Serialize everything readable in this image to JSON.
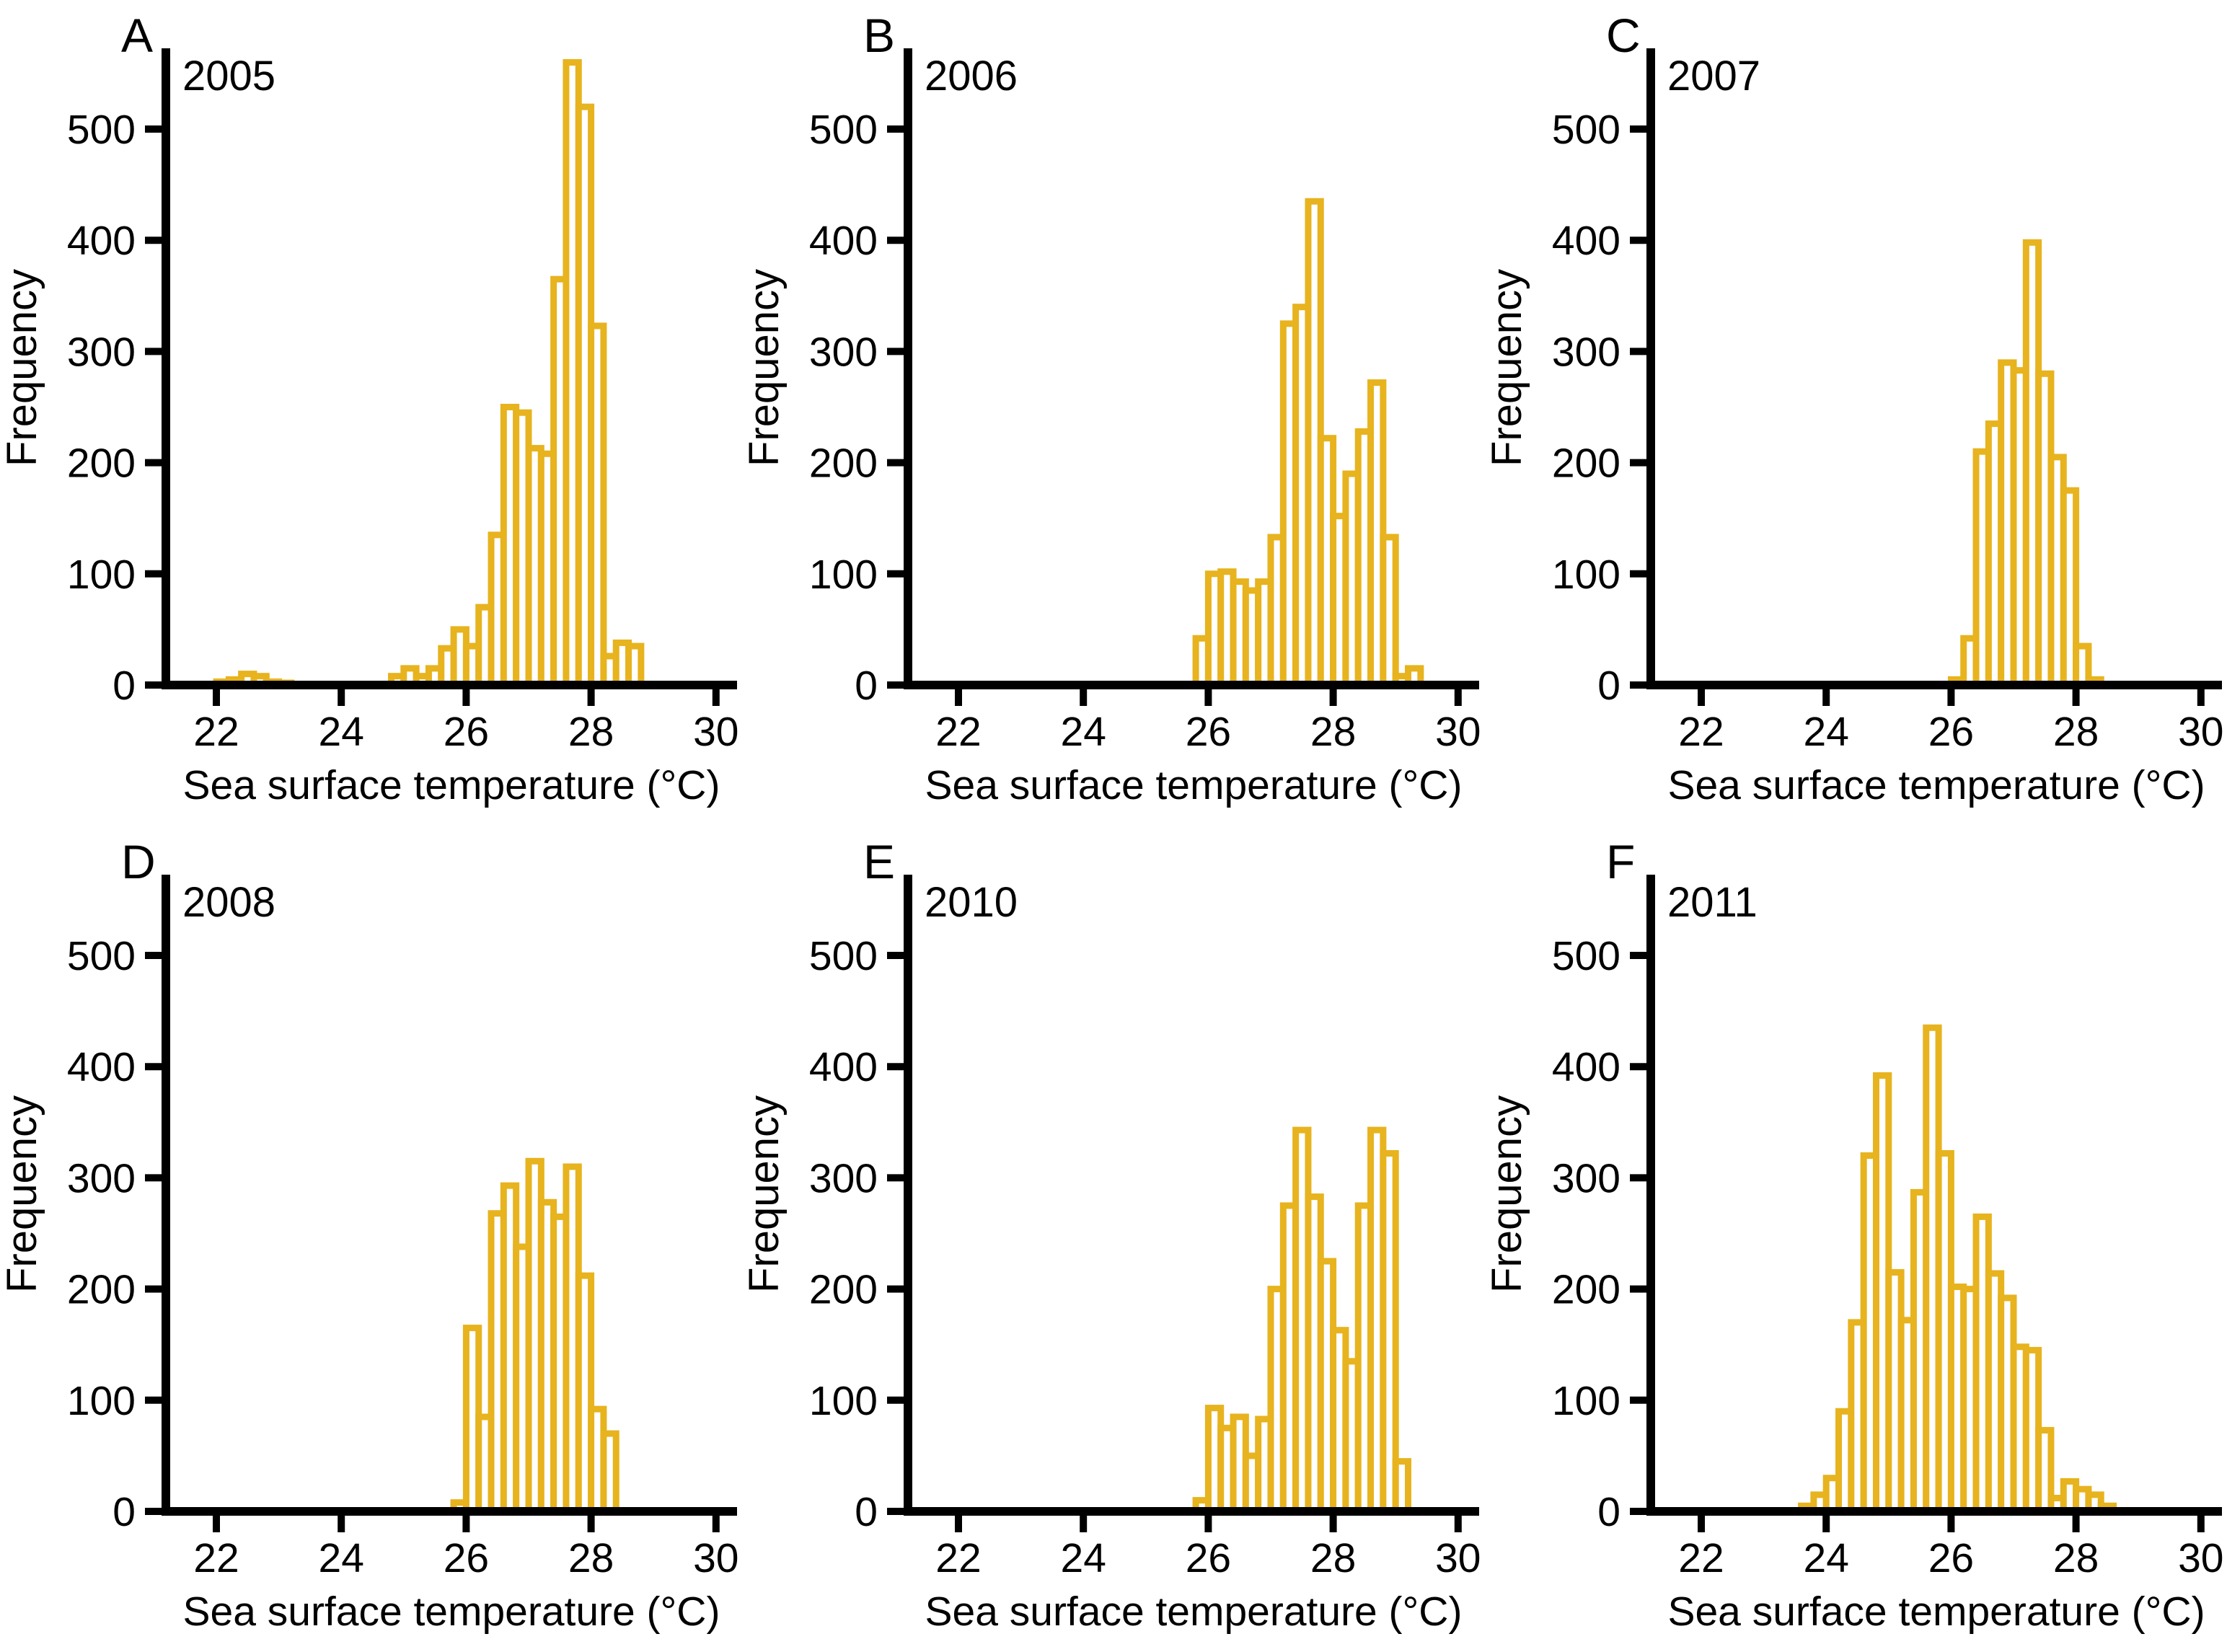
{
  "figure": {
    "background": "#ffffff",
    "bar_stroke_color": "#E7B31E",
    "bar_fill_color": "#ffffff",
    "axis_color": "#000000",
    "text_color": "#000000"
  },
  "chart_data": [
    {
      "type": "bar",
      "panel_label": "A",
      "title": "2005",
      "xlabel": "Sea surface temperature (°C)",
      "ylabel": "Frequency",
      "xlim": [
        21.2,
        30.3
      ],
      "ylim": [
        0,
        565
      ],
      "xticks": [
        22,
        24,
        26,
        28,
        30
      ],
      "yticks": [
        0,
        100,
        200,
        300,
        400,
        500
      ],
      "grid": false,
      "legend": "none",
      "bin_width": 0.2,
      "bin_start": 22.0,
      "values": [
        3,
        5,
        10,
        8,
        3,
        2,
        0,
        0,
        0,
        0,
        0,
        0,
        0,
        0,
        8,
        15,
        8,
        15,
        33,
        50,
        35,
        70,
        135,
        250,
        245,
        213,
        208,
        365,
        560,
        520,
        323,
        26,
        38,
        35
      ]
    },
    {
      "type": "bar",
      "panel_label": "B",
      "title": "2006",
      "xlabel": "Sea surface temperature (°C)",
      "ylabel": "Frequency",
      "xlim": [
        21.2,
        30.3
      ],
      "ylim": [
        0,
        565
      ],
      "xticks": [
        22,
        24,
        26,
        28,
        30
      ],
      "yticks": [
        0,
        100,
        200,
        300,
        400,
        500
      ],
      "grid": false,
      "legend": "none",
      "bin_width": 0.2,
      "bin_start": 25.8,
      "values": [
        42,
        100,
        102,
        93,
        85,
        93,
        133,
        325,
        340,
        435,
        222,
        152,
        190,
        228,
        272,
        133,
        8,
        15
      ]
    },
    {
      "type": "bar",
      "panel_label": "C",
      "title": "2007",
      "xlabel": "Sea surface temperature (°C)",
      "ylabel": "Frequency",
      "xlim": [
        21.2,
        30.3
      ],
      "ylim": [
        0,
        565
      ],
      "xticks": [
        22,
        24,
        26,
        28,
        30
      ],
      "yticks": [
        0,
        100,
        200,
        300,
        400,
        500
      ],
      "grid": false,
      "legend": "none",
      "bin_width": 0.2,
      "bin_start": 26.0,
      "values": [
        5,
        42,
        210,
        235,
        290,
        283,
        398,
        280,
        205,
        175,
        35,
        5
      ]
    },
    {
      "type": "bar",
      "panel_label": "D",
      "title": "2008",
      "xlabel": "Sea surface temperature (°C)",
      "ylabel": "Frequency",
      "xlim": [
        21.2,
        30.3
      ],
      "ylim": [
        0,
        565
      ],
      "xticks": [
        22,
        24,
        26,
        28,
        30
      ],
      "yticks": [
        0,
        100,
        200,
        300,
        400,
        500
      ],
      "grid": false,
      "legend": "none",
      "bin_width": 0.2,
      "bin_start": 25.8,
      "values": [
        8,
        165,
        85,
        268,
        293,
        238,
        315,
        278,
        265,
        310,
        212,
        92,
        70
      ]
    },
    {
      "type": "bar",
      "panel_label": "E",
      "title": "2010",
      "xlabel": "Sea surface temperature (°C)",
      "ylabel": "Frequency",
      "xlim": [
        21.2,
        30.3
      ],
      "ylim": [
        0,
        565
      ],
      "xticks": [
        22,
        24,
        26,
        28,
        30
      ],
      "yticks": [
        0,
        100,
        200,
        300,
        400,
        500
      ],
      "grid": false,
      "legend": "none",
      "bin_width": 0.2,
      "bin_start": 25.8,
      "values": [
        10,
        93,
        75,
        85,
        50,
        83,
        200,
        275,
        343,
        283,
        225,
        163,
        135,
        275,
        343,
        322,
        45
      ]
    },
    {
      "type": "bar",
      "panel_label": "F",
      "title": "2011",
      "xlabel": "Sea surface temperature (°C)",
      "ylabel": "Frequency",
      "xlim": [
        21.2,
        30.3
      ],
      "ylim": [
        0,
        565
      ],
      "xticks": [
        22,
        24,
        26,
        28,
        30
      ],
      "yticks": [
        0,
        100,
        200,
        300,
        400,
        500
      ],
      "grid": false,
      "legend": "none",
      "bin_width": 0.2,
      "bin_start": 23.6,
      "values": [
        5,
        15,
        30,
        90,
        170,
        320,
        392,
        215,
        172,
        287,
        435,
        322,
        202,
        200,
        265,
        214,
        192,
        148,
        145,
        73,
        12,
        27,
        20,
        15,
        5
      ]
    }
  ]
}
